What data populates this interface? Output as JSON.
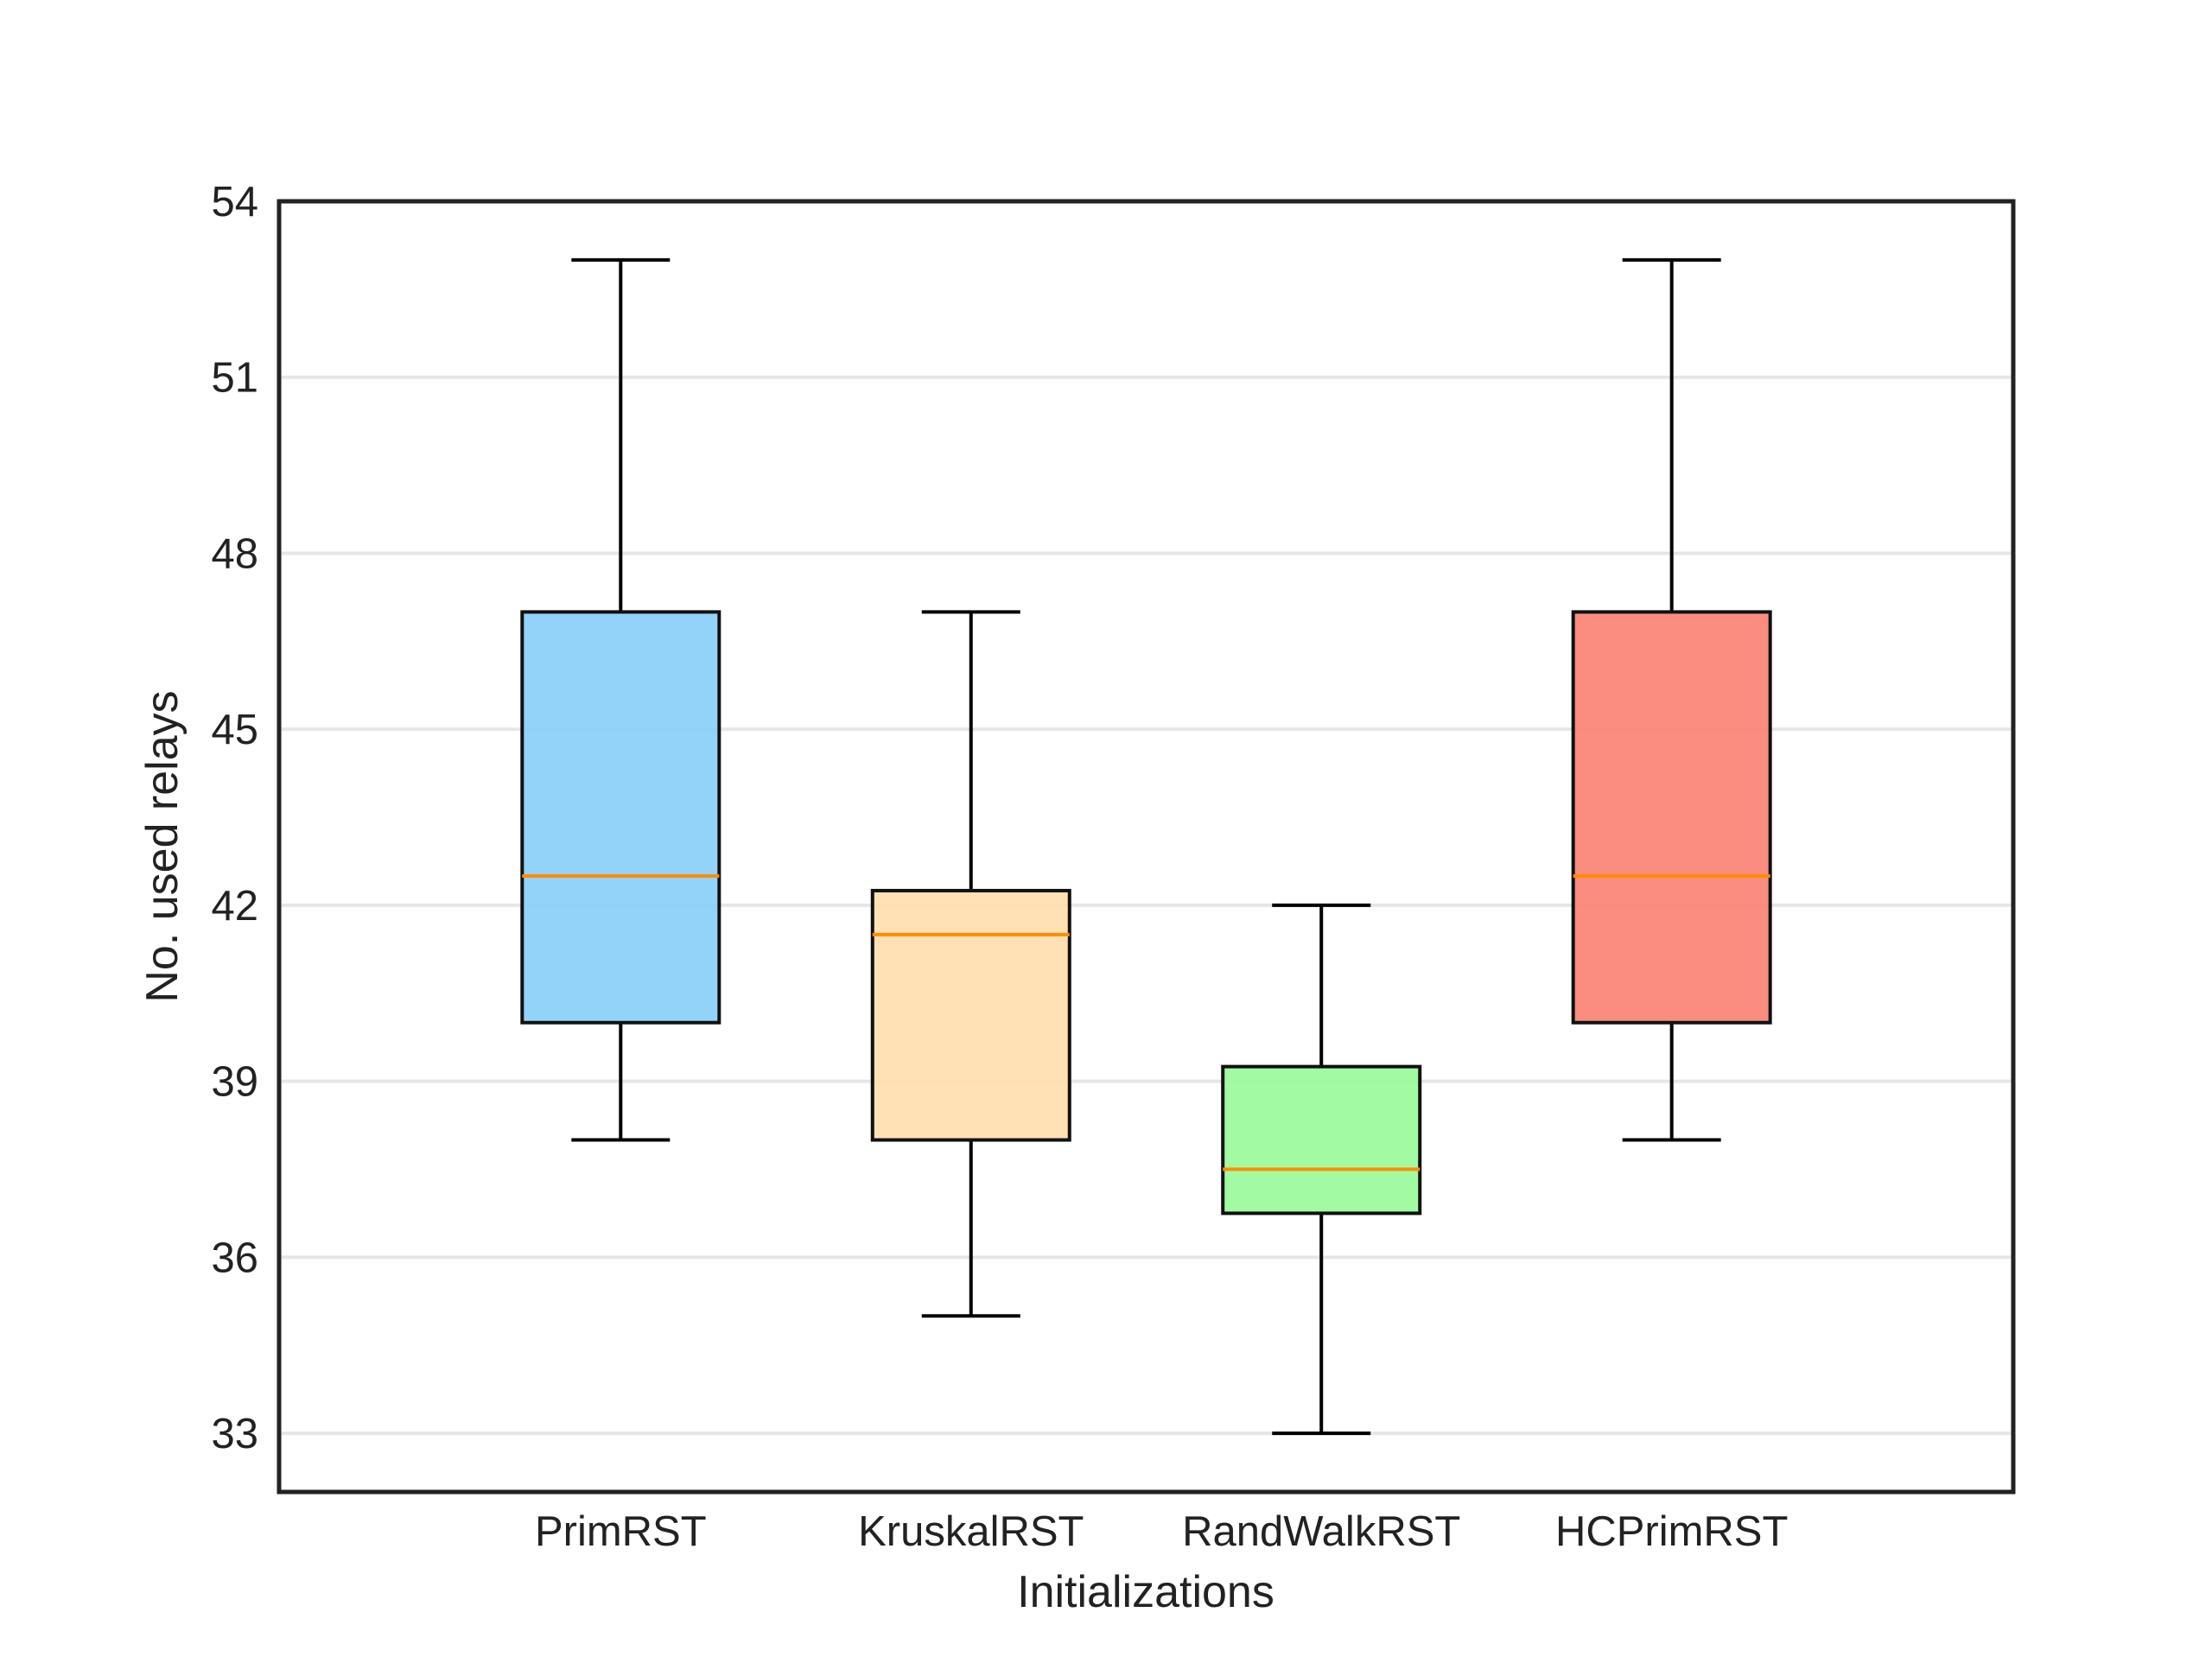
{
  "chart_data": {
    "type": "box",
    "title": "",
    "xlabel": "Initializations",
    "ylabel": "No. used relays",
    "ylim": [
      32,
      54
    ],
    "yticks": [
      33,
      36,
      39,
      42,
      45,
      48,
      51,
      54
    ],
    "grid": "horizontal",
    "legend": "none",
    "categories": [
      "PrimRST",
      "KruskalRST",
      "RandWalkRST",
      "HCPrimRST"
    ],
    "boxes": [
      {
        "category": "PrimRST",
        "whisker_low": 38,
        "q1": 40,
        "median": 42.5,
        "q3": 47,
        "whisker_high": 53,
        "color": "#87CEFA"
      },
      {
        "category": "KruskalRST",
        "whisker_low": 35,
        "q1": 38,
        "median": 41.5,
        "q3": 42.25,
        "whisker_high": 47,
        "color": "#FFDEAD"
      },
      {
        "category": "RandWalkRST",
        "whisker_low": 33,
        "q1": 36.75,
        "median": 37.5,
        "q3": 39.25,
        "whisker_high": 42,
        "color": "#98FB98"
      },
      {
        "category": "HCPrimRST",
        "whisker_low": 38,
        "q1": 40,
        "median": 42.5,
        "q3": 47,
        "whisker_high": 53,
        "color": "#FA8072"
      }
    ],
    "colors": {
      "median": "#FF8C00",
      "frame": "#222222",
      "grid": "#E6E6E6",
      "whisker": "#000000"
    }
  }
}
